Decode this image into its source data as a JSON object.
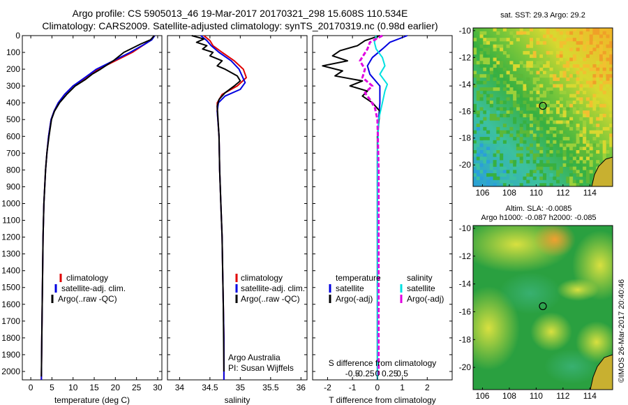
{
  "header": {
    "title_line1": "Argo profile: CS 5905013_46 19-Mar-2017 20170321_298 15.608S 110.534E",
    "title_line2": "Climatology: CARS2009. Satellite-adjusted climatology: synTS_20170319.nc (0.98d earlier)"
  },
  "colors": {
    "climatology": "#e00000",
    "satellite": "#0000e0",
    "argo": "#000000",
    "salinity_satellite": "#00e0e0",
    "salinity_argo": "#e000e0"
  },
  "chart_data": [
    {
      "type": "line",
      "id": "temperature",
      "xlabel": "temperature (deg C)",
      "ylabel": "",
      "xlim": [
        -2,
        31
      ],
      "ylim": [
        2050,
        0
      ],
      "xticks": [
        0,
        5,
        10,
        15,
        20,
        25,
        30
      ],
      "yticks": [
        0,
        100,
        200,
        300,
        400,
        500,
        600,
        700,
        800,
        900,
        1000,
        1100,
        1200,
        1300,
        1400,
        1500,
        1600,
        1700,
        1800,
        1900,
        2000
      ],
      "legend": [
        "climatology",
        "satellite-adj. clim.",
        "Argo(..raw -QC)"
      ],
      "series": [
        {
          "name": "climatology",
          "x": [
            29.2,
            28.5,
            27,
            24,
            20,
            16,
            13,
            10,
            8,
            6.5,
            5.5,
            4.8,
            4.2,
            3.8,
            3.5,
            3.3,
            3.1,
            2.9,
            2.8,
            2.7,
            2.6,
            2.5
          ],
          "y": [
            0,
            25,
            50,
            100,
            150,
            200,
            250,
            300,
            350,
            400,
            450,
            500,
            600,
            700,
            800,
            900,
            1000,
            1200,
            1400,
            1600,
            1800,
            2050
          ]
        },
        {
          "name": "satellite-adj. clim.",
          "x": [
            29.3,
            28.6,
            27,
            23.5,
            19.5,
            15.5,
            12.8,
            10,
            8,
            6.5,
            5.5,
            4.8,
            4.2,
            3.8,
            3.5,
            3.3,
            3.1,
            2.9,
            2.8,
            2.7,
            2.6,
            2.5
          ],
          "y": [
            0,
            25,
            50,
            100,
            150,
            200,
            250,
            300,
            350,
            400,
            450,
            500,
            600,
            700,
            800,
            900,
            1000,
            1200,
            1400,
            1600,
            1800,
            2050
          ]
        },
        {
          "name": "Argo(..raw -QC)",
          "x": [
            29.2,
            28.3,
            26,
            22,
            19.5,
            16.5,
            14.5,
            13,
            10.5,
            8.5,
            6.8,
            5.6,
            4.9,
            4.3,
            3.8,
            3.5,
            3.3,
            3.1,
            2.9,
            2.8,
            2.7,
            2.6,
            2.5
          ],
          "y": [
            0,
            25,
            50,
            100,
            150,
            200,
            230,
            260,
            300,
            350,
            400,
            450,
            500,
            600,
            700,
            800,
            900,
            1000,
            1200,
            1400,
            1600,
            1800,
            2030
          ]
        }
      ]
    },
    {
      "type": "line",
      "id": "salinity",
      "xlabel": "salinity",
      "xlim": [
        33.8,
        36.1
      ],
      "ylim": [
        2050,
        0
      ],
      "xticks": [
        34,
        34.5,
        35,
        35.5,
        36
      ],
      "legend": [
        "climatology",
        "satellite-adj. clim.",
        "Argo(..raw -QC)"
      ],
      "annotations": [
        "Argo Australia",
        "PI: Susan Wijffels"
      ],
      "series": [
        {
          "name": "climatology",
          "x": [
            34.4,
            34.5,
            34.55,
            34.7,
            34.9,
            35.05,
            35.1,
            34.95,
            34.7,
            34.62,
            34.62,
            34.63,
            34.65,
            34.66,
            34.68,
            34.7,
            34.71,
            34.72,
            34.73,
            34.73
          ],
          "y": [
            0,
            30,
            60,
            100,
            150,
            200,
            250,
            300,
            350,
            400,
            450,
            500,
            600,
            800,
            1000,
            1200,
            1400,
            1600,
            1800,
            2050
          ]
        },
        {
          "name": "satellite-adj. clim.",
          "x": [
            34.35,
            34.45,
            34.52,
            34.65,
            34.85,
            34.98,
            35.08,
            35.0,
            34.75,
            34.64,
            34.62,
            34.63,
            34.65,
            34.66,
            34.68,
            34.7,
            34.71,
            34.72,
            34.73,
            34.73
          ],
          "y": [
            0,
            30,
            60,
            100,
            150,
            200,
            280,
            320,
            360,
            400,
            450,
            500,
            600,
            800,
            1000,
            1200,
            1400,
            1600,
            1800,
            2050
          ]
        },
        {
          "name": "Argo(..raw -QC)",
          "x": [
            34.2,
            34.4,
            34.28,
            34.45,
            34.38,
            34.55,
            34.5,
            34.7,
            34.62,
            34.75,
            34.95,
            35.0,
            34.9,
            34.75,
            34.65,
            34.62,
            34.63,
            34.65,
            34.66,
            34.68,
            34.7,
            34.71,
            34.72,
            34.73
          ],
          "y": [
            0,
            20,
            40,
            60,
            80,
            100,
            120,
            150,
            180,
            200,
            240,
            270,
            300,
            340,
            380,
            420,
            480,
            600,
            800,
            1000,
            1200,
            1400,
            1600,
            2000
          ]
        }
      ]
    },
    {
      "type": "line",
      "id": "difference",
      "xlabel": "T difference from climatology",
      "top_xlabel": "S difference from climatology",
      "xlim": [
        -2.6,
        3.0
      ],
      "ylim": [
        2050,
        0
      ],
      "xticks": [
        -2,
        -1,
        0,
        1,
        2
      ],
      "top_xticks": [
        "-0.5",
        "-0.25",
        "0",
        "0.25",
        "0.5"
      ],
      "legend_headers": [
        "temperature",
        "salinity"
      ],
      "legend": [
        "satellite",
        "Argo(-adj)",
        "satellite",
        "Argo(-adj)"
      ],
      "series": [
        {
          "name": "temperature satellite",
          "x": [
            1.2,
            0.5,
            0.2,
            -0.2,
            -0.4,
            -0.3,
            0.1,
            0.1,
            0.05,
            0,
            0,
            0,
            0,
            0,
            0
          ],
          "y": [
            0,
            40,
            80,
            130,
            180,
            230,
            300,
            400,
            500,
            700,
            900,
            1200,
            1500,
            1800,
            2050
          ]
        },
        {
          "name": "temperature Argo(-adj)",
          "x": [
            0.1,
            -0.5,
            -0.8,
            -1.5,
            -1.8,
            -1.2,
            -2.2,
            -1.4,
            -1.7,
            -0.6,
            -1.1,
            -0.4,
            -0.6,
            -0.2,
            0.1,
            0,
            0,
            0,
            0
          ],
          "y": [
            0,
            30,
            60,
            90,
            120,
            150,
            180,
            210,
            240,
            270,
            300,
            330,
            360,
            400,
            450,
            600,
            1000,
            1500,
            2030
          ]
        },
        {
          "name": "salinity satellite",
          "x": [
            -0.05,
            -0.12,
            -0.05,
            0.2,
            0.3,
            0.1,
            0.4,
            0.3,
            0.2,
            0.05,
            0,
            0,
            0,
            0
          ],
          "y": [
            0,
            40,
            80,
            130,
            180,
            230,
            290,
            330,
            400,
            500,
            700,
            1000,
            1500,
            2050
          ]
        },
        {
          "name": "salinity Argo(-adj)",
          "x": [
            0.2,
            -0.3,
            -0.4,
            -0.7,
            -0.5,
            -0.6,
            -0.2,
            -0.5,
            -0.3,
            -0.1,
            0,
            0.05,
            0.05,
            0.05
          ],
          "y": [
            0,
            40,
            80,
            150,
            200,
            250,
            300,
            340,
            380,
            430,
            500,
            800,
            1400,
            2030
          ]
        }
      ]
    },
    {
      "type": "heatmap",
      "id": "sst_map",
      "title": "sat. SST: 29.3 Argo: 29.2",
      "xlim": [
        105.3,
        115.7
      ],
      "ylim": [
        -21.6,
        -9.8
      ],
      "xticks": [
        106,
        108,
        110,
        112,
        114
      ],
      "yticks": [
        -10,
        -12,
        -14,
        -16,
        -18,
        -20
      ],
      "marker": [
        110.5,
        -15.6
      ]
    },
    {
      "type": "heatmap",
      "id": "sla_map",
      "title": "Altim. SLA: -0.0085",
      "subtitle": "Argo h1000: -0.087 h2000: -0.085",
      "xlim": [
        105.3,
        115.7
      ],
      "ylim": [
        -21.6,
        -9.8
      ],
      "xticks": [
        106,
        108,
        110,
        112,
        114
      ],
      "yticks": [
        -10,
        -12,
        -14,
        -16,
        -18,
        -20
      ],
      "marker": [
        110.5,
        -15.6
      ]
    }
  ],
  "credit": "©IMOS 26-Mar-2017 20:40:46"
}
